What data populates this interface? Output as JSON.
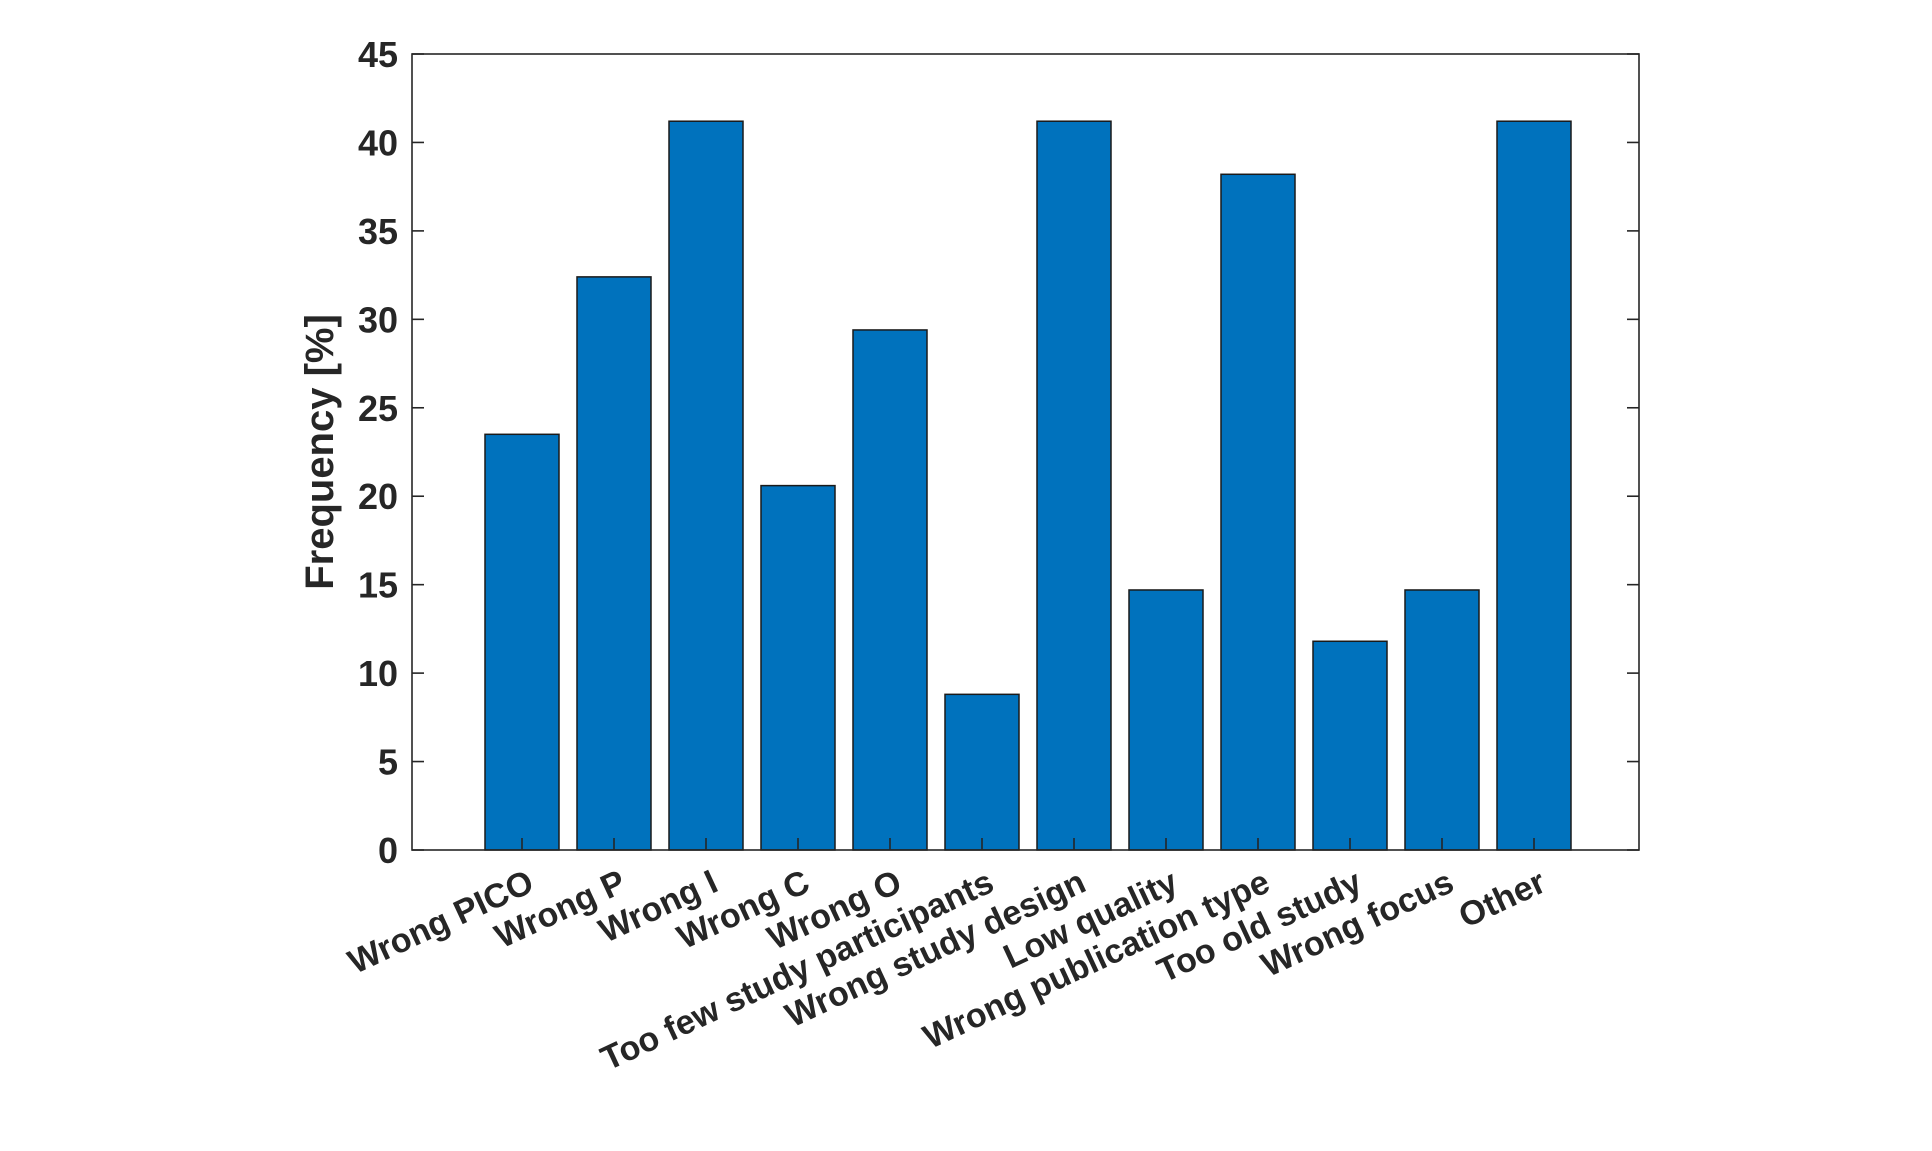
{
  "chart_data": {
    "type": "bar",
    "title": "",
    "xlabel": "",
    "ylabel": "Frequency [%]",
    "ylim": [
      0,
      45
    ],
    "yticks": [
      0,
      5,
      10,
      15,
      20,
      25,
      30,
      35,
      40,
      45
    ],
    "grid": false,
    "legend": "none",
    "bar_color": "#0072BD",
    "axis_color": "#262626",
    "categories": [
      "Wrong PICO",
      "Wrong P",
      "Wrong I",
      "Wrong C",
      "Wrong O",
      "Too few study participants",
      "Wrong study design",
      "Low quality",
      "Wrong publication type",
      "Too old study",
      "Wrong focus",
      "Other"
    ],
    "values": [
      23.5,
      32.4,
      41.2,
      20.6,
      29.4,
      8.8,
      41.2,
      14.7,
      38.2,
      11.8,
      14.7,
      41.2
    ]
  }
}
